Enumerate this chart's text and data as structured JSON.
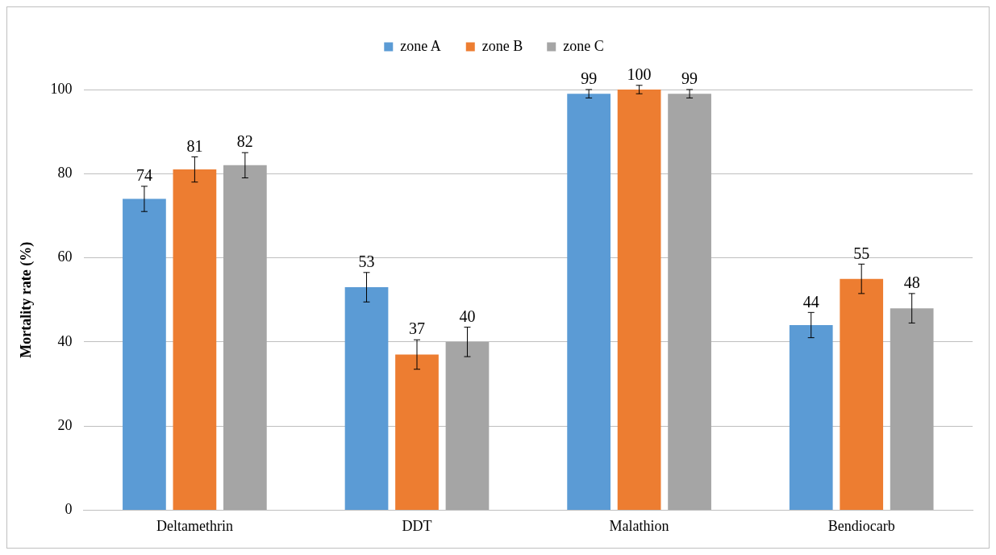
{
  "chart_data": {
    "type": "bar",
    "ylabel": "Mortality rate (%)",
    "categories": [
      "Deltamethrin",
      "DDT",
      "Malathion",
      "Bendiocarb"
    ],
    "series": [
      {
        "name": "zone A",
        "color": "#5b9bd5",
        "values": [
          74,
          53,
          99,
          44
        ],
        "errors": [
          3,
          3.5,
          1,
          3
        ]
      },
      {
        "name": "zone B",
        "color": "#ed7d31",
        "values": [
          81,
          37,
          100,
          55
        ],
        "errors": [
          3,
          3.5,
          1,
          3.5
        ]
      },
      {
        "name": "zone C",
        "color": "#a5a5a5",
        "values": [
          82,
          40,
          99,
          48
        ],
        "errors": [
          3,
          3.5,
          1,
          3.5
        ]
      }
    ],
    "ylim": [
      0,
      100
    ],
    "yticks": [
      0,
      20,
      40,
      60,
      80,
      100
    ],
    "grid": "y",
    "legend": "top",
    "data_labels": true
  }
}
